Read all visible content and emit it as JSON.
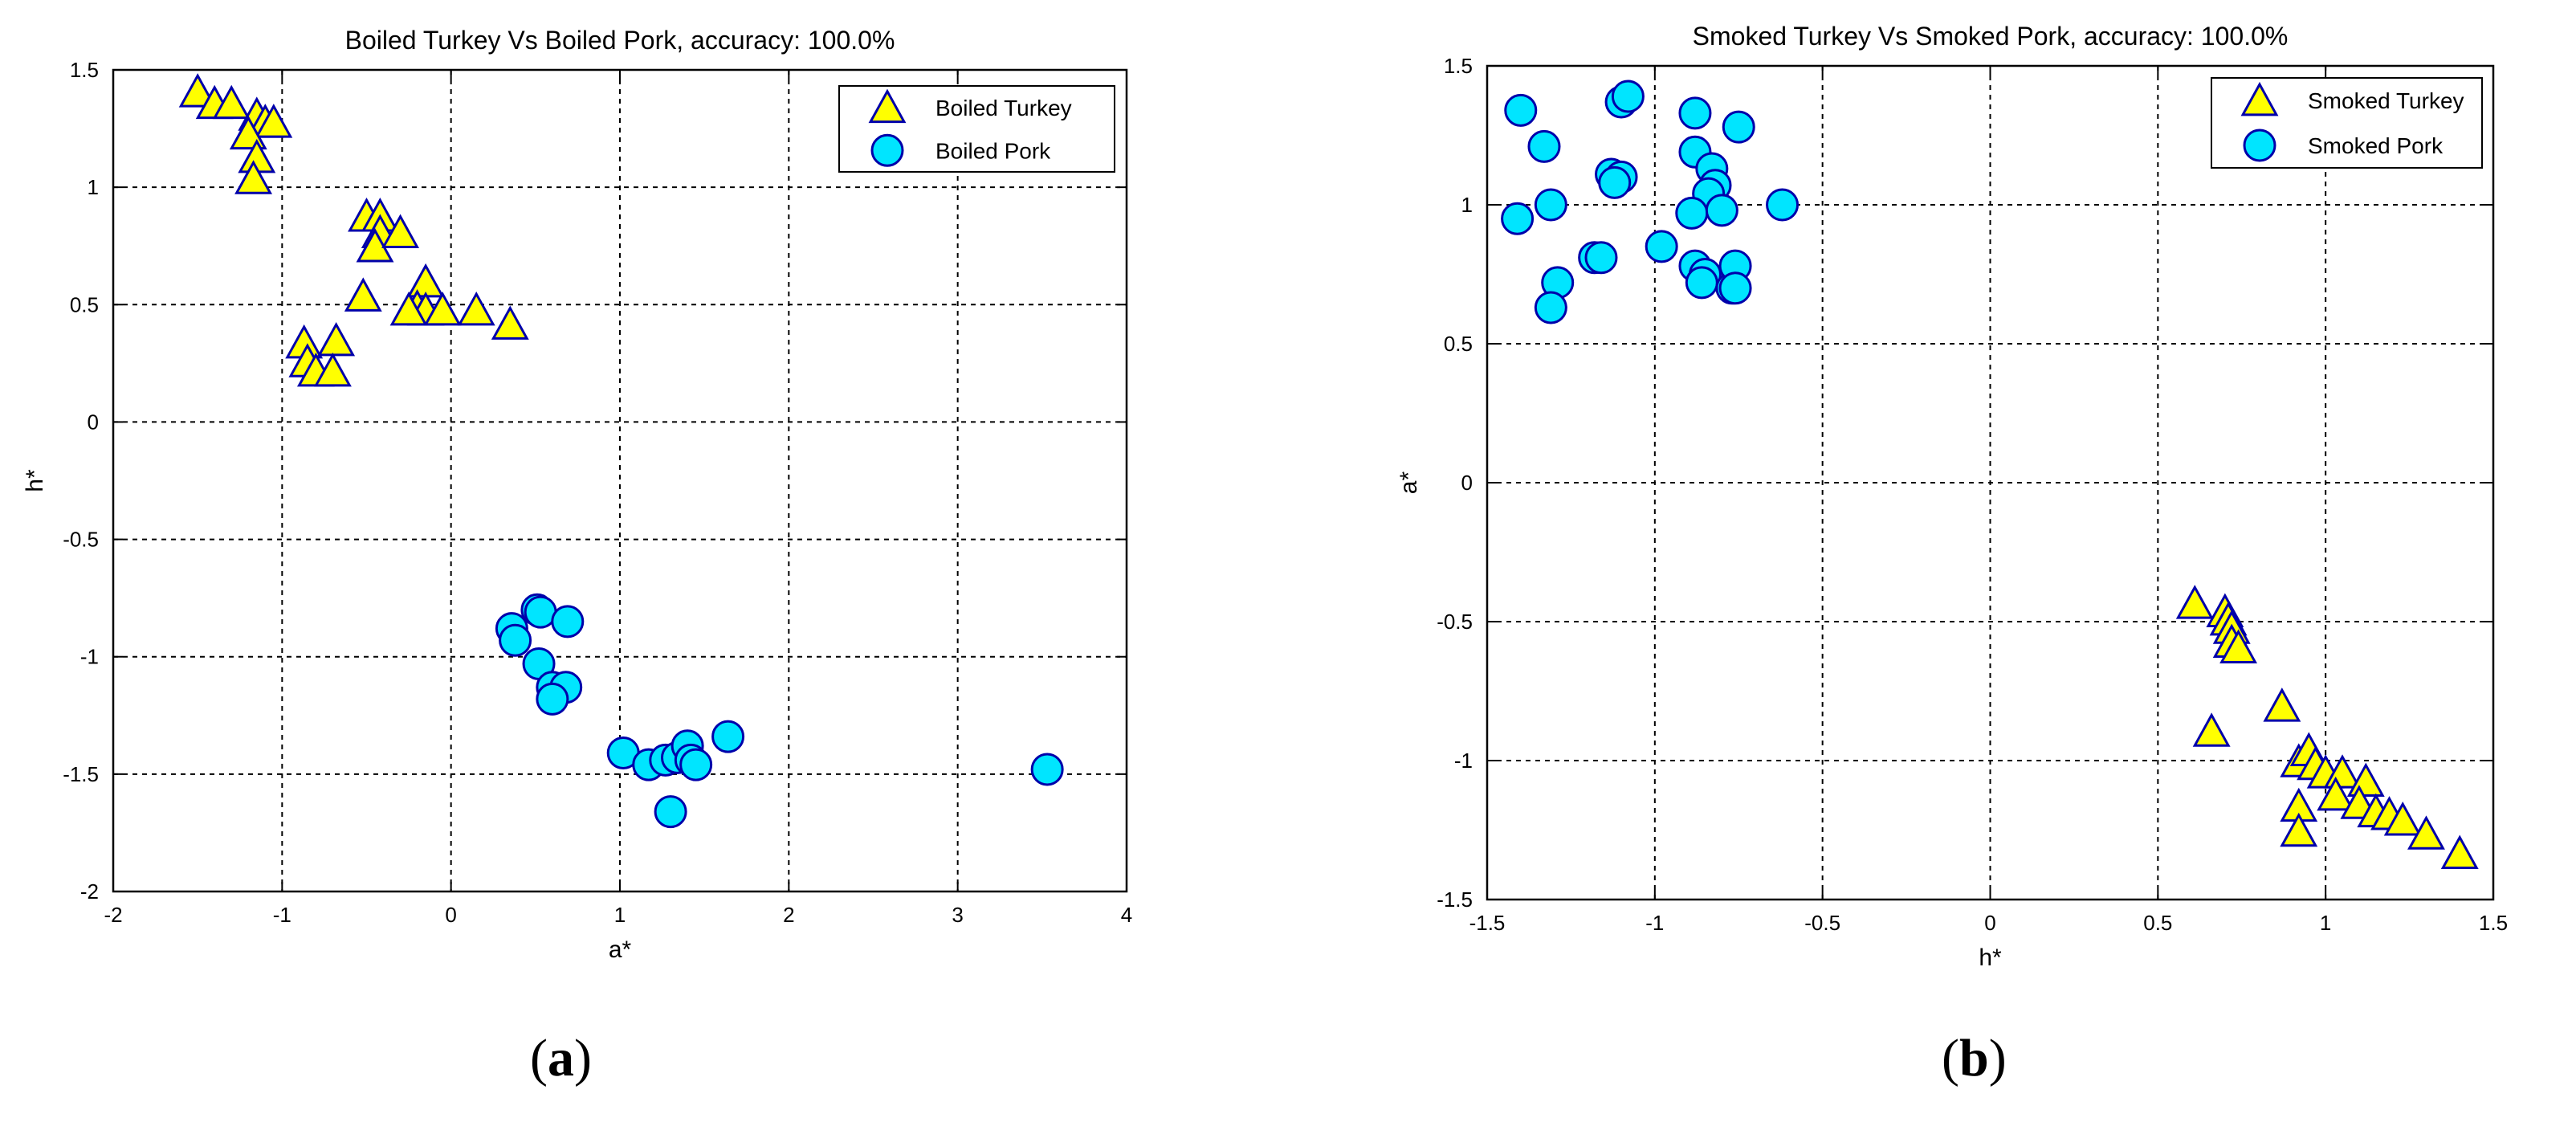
{
  "chart_data": [
    {
      "type": "scatter",
      "panel_label": "a",
      "title": "Boiled Turkey Vs Boiled Pork, accuracy: 100.0%",
      "xlabel": "a*",
      "ylabel": "h*",
      "xlim": [
        -2,
        4
      ],
      "ylim": [
        -2,
        1.5
      ],
      "xticks": [
        -2,
        -1,
        0,
        1,
        2,
        3,
        4
      ],
      "xtick_labels": [
        "-2",
        "-1",
        "0",
        "1",
        "2",
        "3",
        "4"
      ],
      "yticks": [
        -2,
        -1.5,
        -1,
        -0.5,
        0,
        0.5,
        1,
        1.5
      ],
      "ytick_labels": [
        "-2",
        "-1.5",
        "-1",
        "-0.5",
        "0",
        "0.5",
        "1",
        "1.5"
      ],
      "grid": true,
      "legend_position": "top-right",
      "series": [
        {
          "name": "Boiled Turkey",
          "marker": "triangle",
          "color": "#ffff00",
          "edge": "#0000aa",
          "points": [
            [
              -1.5,
              1.4
            ],
            [
              -1.4,
              1.35
            ],
            [
              -1.3,
              1.35
            ],
            [
              -1.15,
              1.3
            ],
            [
              -1.1,
              1.27
            ],
            [
              -1.05,
              1.27
            ],
            [
              -1.2,
              1.22
            ],
            [
              -1.15,
              1.12
            ],
            [
              -1.17,
              1.03
            ],
            [
              -0.5,
              0.87
            ],
            [
              -0.42,
              0.87
            ],
            [
              -0.42,
              0.8
            ],
            [
              -0.45,
              0.74
            ],
            [
              -0.3,
              0.8
            ],
            [
              -0.15,
              0.59
            ],
            [
              -0.2,
              0.48
            ],
            [
              -0.15,
              0.47
            ],
            [
              -0.05,
              0.47
            ],
            [
              0.15,
              0.47
            ],
            [
              -0.25,
              0.47
            ],
            [
              -0.52,
              0.53
            ],
            [
              0.35,
              0.41
            ],
            [
              -0.87,
              0.33
            ],
            [
              -0.85,
              0.25
            ],
            [
              -0.8,
              0.21
            ],
            [
              -0.68,
              0.34
            ],
            [
              -0.7,
              0.21
            ]
          ]
        },
        {
          "name": "Boiled Pork",
          "marker": "circle",
          "color": "#00e5ff",
          "edge": "#0000aa",
          "points": [
            [
              0.36,
              -0.88
            ],
            [
              0.38,
              -0.93
            ],
            [
              0.51,
              -0.8
            ],
            [
              0.53,
              -0.81
            ],
            [
              0.69,
              -0.85
            ],
            [
              0.52,
              -1.03
            ],
            [
              0.6,
              -1.13
            ],
            [
              0.68,
              -1.13
            ],
            [
              0.6,
              -1.18
            ],
            [
              1.02,
              -1.41
            ],
            [
              1.17,
              -1.46
            ],
            [
              1.27,
              -1.44
            ],
            [
              1.34,
              -1.43
            ],
            [
              1.4,
              -1.38
            ],
            [
              1.42,
              -1.44
            ],
            [
              1.45,
              -1.46
            ],
            [
              1.64,
              -1.34
            ],
            [
              1.3,
              -1.66
            ],
            [
              3.53,
              -1.48
            ]
          ]
        }
      ]
    },
    {
      "type": "scatter",
      "panel_label": "b",
      "title": "Smoked Turkey  Vs Smoked Pork, accuracy: 100.0%",
      "xlabel": "h*",
      "ylabel": "a*",
      "xlim": [
        -1.5,
        1.5
      ],
      "ylim": [
        -1.5,
        1.5
      ],
      "xticks": [
        -1.5,
        -1,
        -0.5,
        0,
        0.5,
        1,
        1.5
      ],
      "xtick_labels": [
        "-1.5",
        "-1",
        "-0.5",
        "0",
        "0.5",
        "1",
        "1.5"
      ],
      "yticks": [
        -1.5,
        -1,
        -0.5,
        0,
        0.5,
        1,
        1.5
      ],
      "ytick_labels": [
        "-1.5",
        "-1",
        "-0.5",
        "0",
        "0.5",
        "1",
        "1.5"
      ],
      "grid": true,
      "legend_position": "top-right",
      "series": [
        {
          "name": "Smoked Turkey",
          "marker": "triangle",
          "color": "#ffff00",
          "edge": "#0000aa",
          "points": [
            [
              0.61,
              -0.44
            ],
            [
              0.7,
              -0.47
            ],
            [
              0.71,
              -0.5
            ],
            [
              0.72,
              -0.53
            ],
            [
              0.72,
              -0.58
            ],
            [
              0.74,
              -0.6
            ],
            [
              0.66,
              -0.9
            ],
            [
              0.87,
              -0.81
            ],
            [
              0.92,
              -1.01
            ],
            [
              0.95,
              -0.97
            ],
            [
              0.97,
              -1.02
            ],
            [
              1.0,
              -1.05
            ],
            [
              1.05,
              -1.05
            ],
            [
              1.12,
              -1.08
            ],
            [
              0.92,
              -1.17
            ],
            [
              1.03,
              -1.13
            ],
            [
              1.1,
              -1.16
            ],
            [
              1.15,
              -1.19
            ],
            [
              1.19,
              -1.2
            ],
            [
              1.23,
              -1.22
            ],
            [
              1.3,
              -1.27
            ],
            [
              1.4,
              -1.34
            ],
            [
              0.92,
              -1.26
            ]
          ]
        },
        {
          "name": "Smoked Pork",
          "marker": "circle",
          "color": "#00e5ff",
          "edge": "#0000aa",
          "points": [
            [
              -1.4,
              1.34
            ],
            [
              -1.33,
              1.21
            ],
            [
              -1.1,
              1.37
            ],
            [
              -1.08,
              1.39
            ],
            [
              -0.88,
              1.33
            ],
            [
              -0.75,
              1.28
            ],
            [
              -0.88,
              1.19
            ],
            [
              -1.13,
              1.11
            ],
            [
              -1.1,
              1.1
            ],
            [
              -1.12,
              1.08
            ],
            [
              -0.83,
              1.13
            ],
            [
              -0.82,
              1.07
            ],
            [
              -0.84,
              1.04
            ],
            [
              -0.89,
              0.97
            ],
            [
              -0.8,
              0.98
            ],
            [
              -1.41,
              0.95
            ],
            [
              -1.31,
              1.0
            ],
            [
              -0.62,
              1.0
            ],
            [
              -0.98,
              0.85
            ],
            [
              -1.18,
              0.81
            ],
            [
              -1.16,
              0.81
            ],
            [
              -0.88,
              0.78
            ],
            [
              -0.85,
              0.75
            ],
            [
              -0.86,
              0.72
            ],
            [
              -0.77,
              0.7
            ],
            [
              -0.76,
              0.78
            ],
            [
              -0.76,
              0.7
            ],
            [
              -1.29,
              0.72
            ],
            [
              -1.31,
              0.63
            ]
          ]
        }
      ]
    }
  ]
}
